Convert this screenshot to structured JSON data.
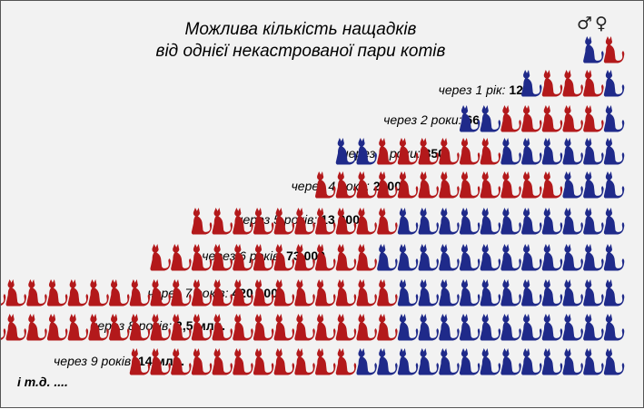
{
  "title": {
    "line1": "Можлива кількість нащадків",
    "line2": "від однієї некастрованої пари котів"
  },
  "symbols": {
    "male": "♂",
    "female": "♀"
  },
  "colors": {
    "male_cat": "#1f2a8a",
    "female_cat": "#b3191b",
    "background": "#f2f2f2"
  },
  "icon": "cat-silhouette-icon",
  "parents": {
    "cats": [
      "m",
      "f"
    ]
  },
  "rows": [
    {
      "prefix": "через 1 рік:",
      "count": "12",
      "cats": [
        "m",
        "f",
        "f",
        "f",
        "m"
      ]
    },
    {
      "prefix": "через 2 роки:",
      "count": "66",
      "cats": [
        "m",
        "m",
        "f",
        "f",
        "f",
        "f",
        "f",
        "m"
      ]
    },
    {
      "prefix": "через 3 роки:",
      "count": "350",
      "cats": [
        "m",
        "m",
        "f",
        "f",
        "f",
        "f",
        "f",
        "f",
        "m",
        "m",
        "m",
        "m",
        "m",
        "m"
      ]
    },
    {
      "prefix": "через 4 роки:",
      "count": "2200",
      "cats": [
        "f",
        "f",
        "f",
        "f",
        "f",
        "f",
        "f",
        "f",
        "f",
        "f",
        "f",
        "f",
        "m",
        "m",
        "m"
      ]
    },
    {
      "prefix": "через 5 років:",
      "count": "13 000",
      "cats": [
        "f",
        "f",
        "f",
        "f",
        "f",
        "f",
        "f",
        "f",
        "f",
        "f",
        "m",
        "m",
        "m",
        "m",
        "m",
        "m",
        "m",
        "m",
        "m",
        "m",
        "m"
      ]
    },
    {
      "prefix": "через 6 років:",
      "count": "73 000",
      "cats": [
        "f",
        "f",
        "f",
        "f",
        "f",
        "f",
        "f",
        "f",
        "f",
        "f",
        "f",
        "m",
        "m",
        "m",
        "m",
        "m",
        "m",
        "m",
        "m",
        "m",
        "m",
        "m",
        "m"
      ]
    },
    {
      "prefix": "через 7 років:",
      "count": "420 000",
      "cats": [
        "m",
        "m",
        "m",
        "m",
        "f",
        "f",
        "f",
        "f",
        "f",
        "f",
        "f",
        "f",
        "f",
        "f",
        "f",
        "f",
        "f",
        "f",
        "f",
        "f",
        "f",
        "f",
        "f",
        "f",
        "m",
        "m",
        "m",
        "m",
        "m",
        "m",
        "m",
        "m",
        "m",
        "m",
        "m"
      ]
    },
    {
      "prefix": "через 8 років:",
      "count": "2,5 млн.",
      "cats": [
        "m",
        "m",
        "m",
        "f",
        "f",
        "f",
        "f",
        "f",
        "f",
        "f",
        "f",
        "f",
        "f",
        "f",
        "f",
        "f",
        "f",
        "f",
        "f",
        "f",
        "f",
        "f",
        "f",
        "f",
        "m",
        "m",
        "m",
        "m",
        "m",
        "m",
        "m",
        "m",
        "m",
        "m",
        "m"
      ]
    },
    {
      "prefix": "через 9 років:",
      "count": "14 млн.",
      "cats": [
        "f",
        "f",
        "f",
        "f",
        "f",
        "f",
        "f",
        "f",
        "f",
        "f",
        "f",
        "m",
        "m",
        "m",
        "m",
        "m",
        "m",
        "m",
        "m",
        "m",
        "m",
        "m",
        "m",
        "m"
      ]
    }
  ],
  "footer": "і т.д. ...."
}
